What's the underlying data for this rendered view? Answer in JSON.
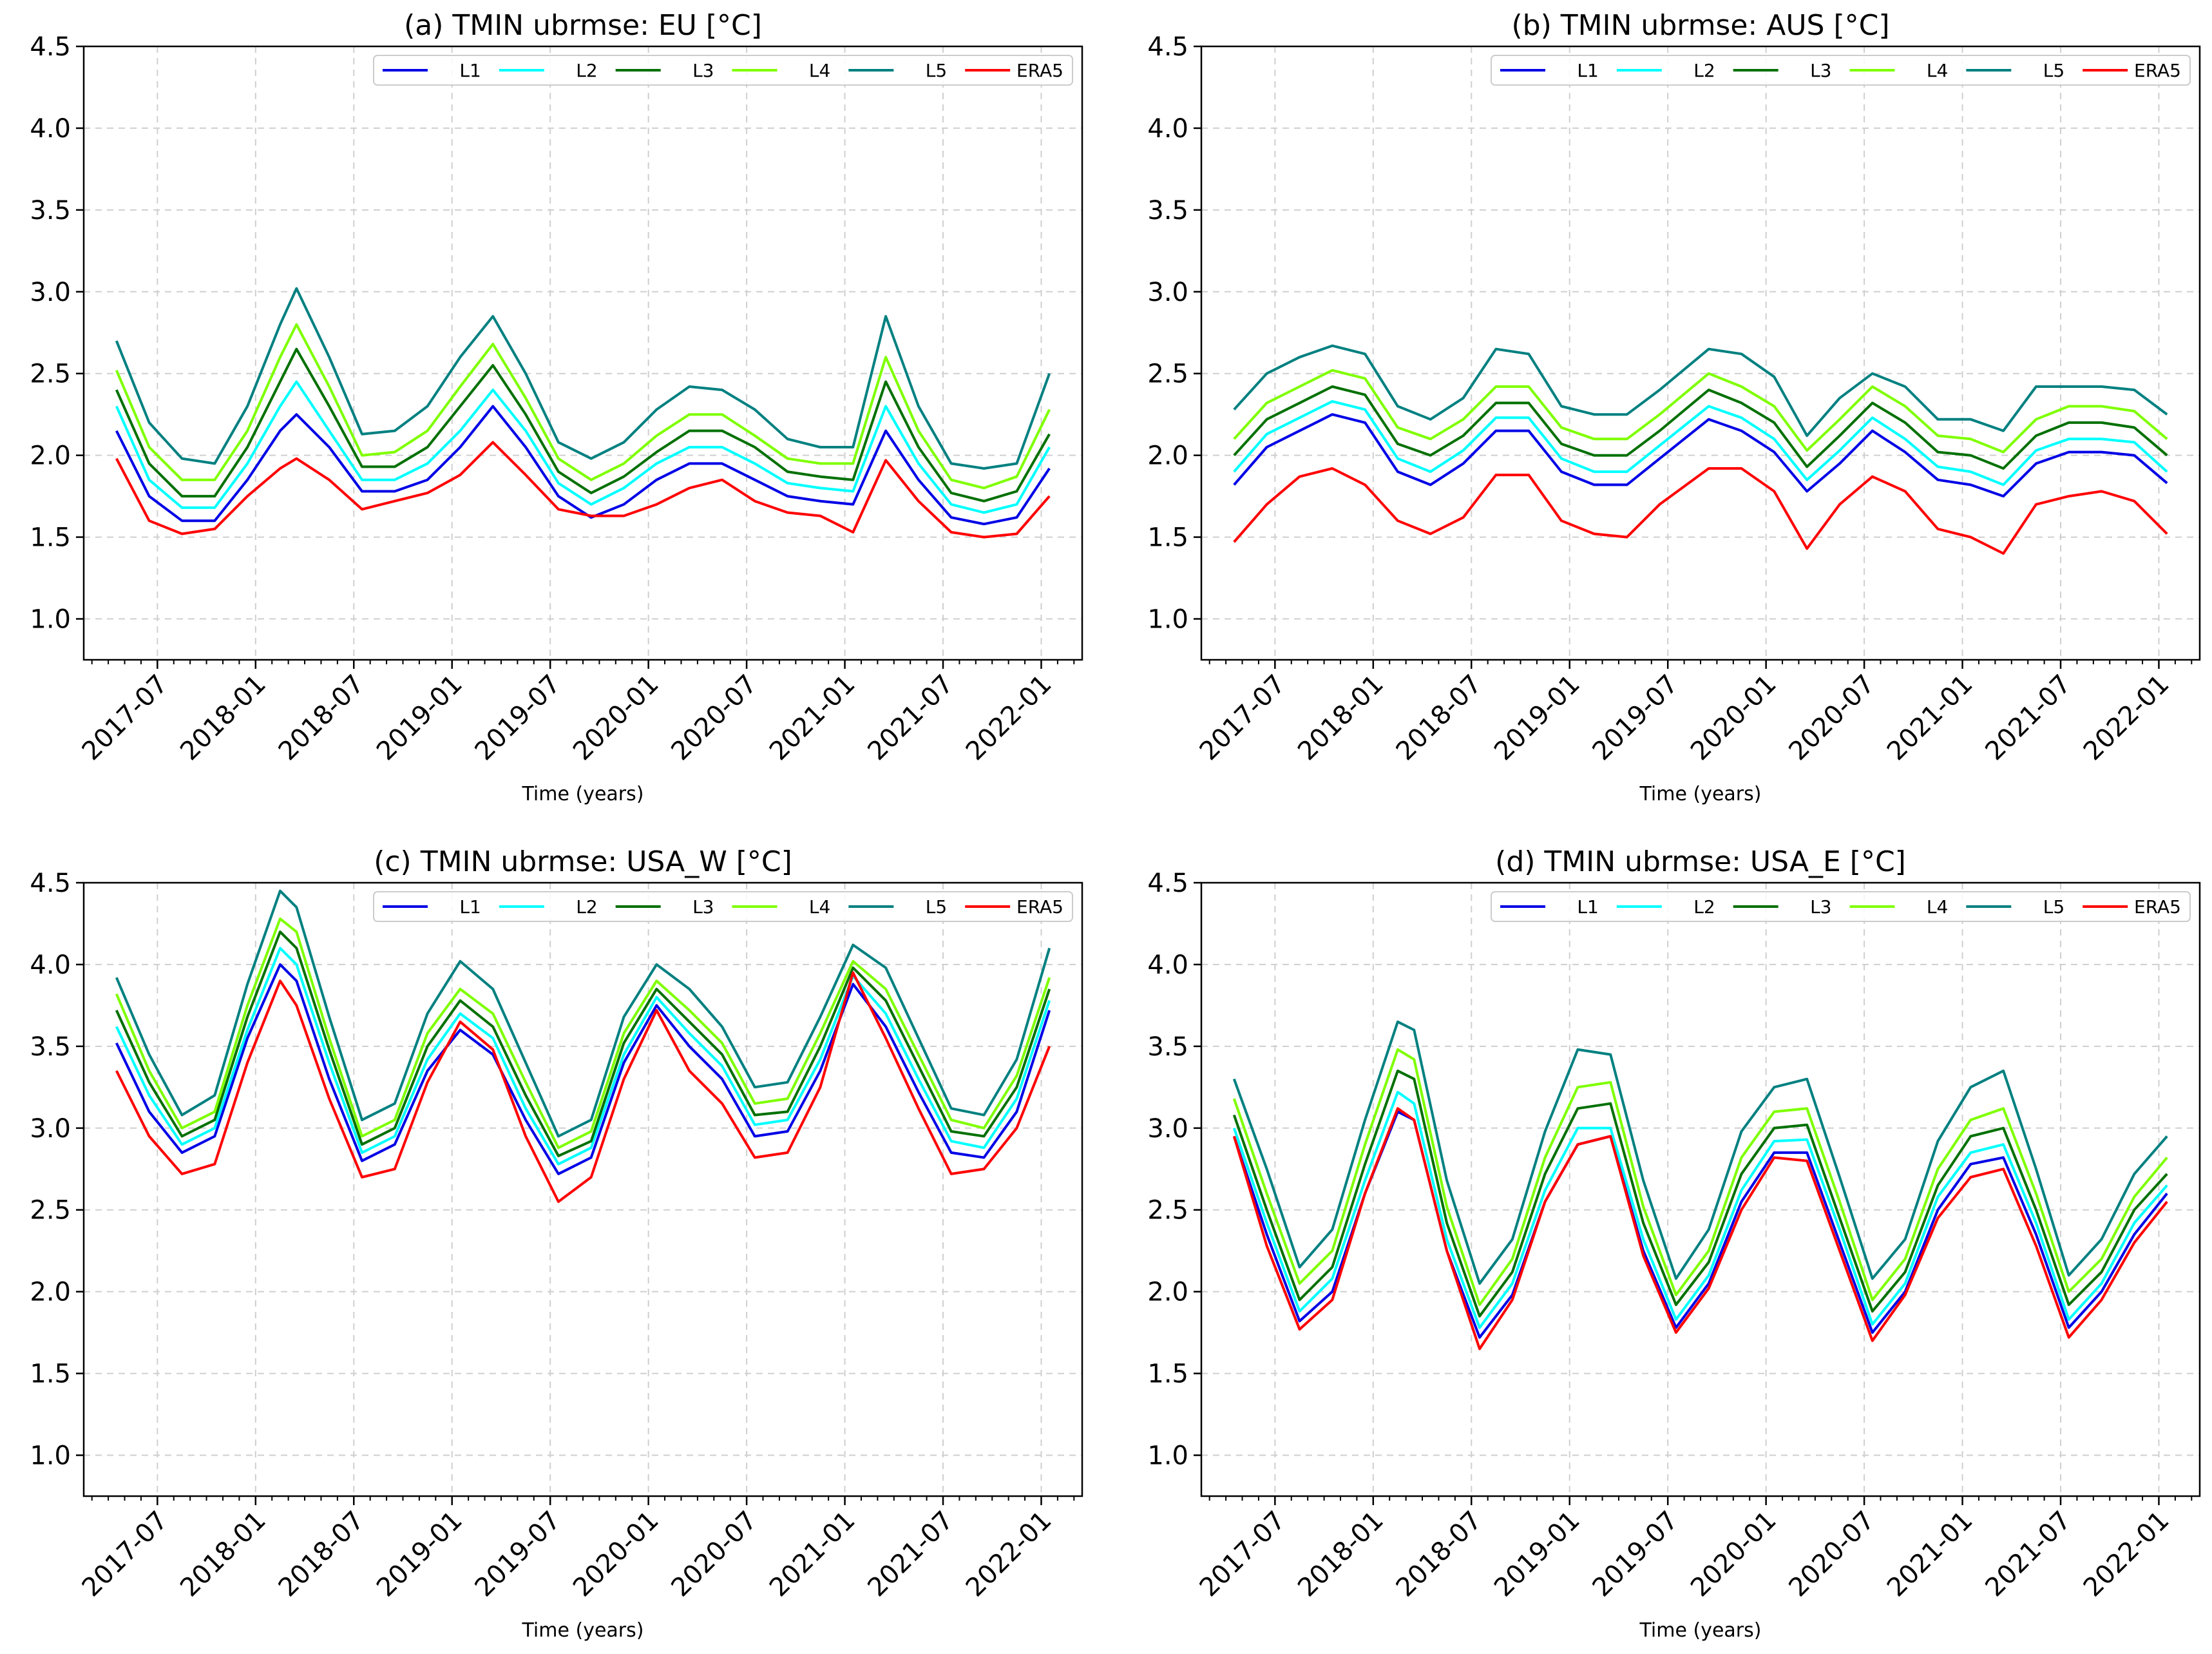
{
  "colors": {
    "L1": "#0000e6",
    "L2": "#00ffff",
    "L3": "#007000",
    "L4": "#7fff00",
    "L5": "#008080",
    "ERA5": "#ff0000"
  },
  "chart_data": [
    {
      "type": "line",
      "title": "(a) TMIN ubrmse: EU [°C]",
      "xlabel": "Time (years)",
      "ylabel": "",
      "ylim": [
        0.75,
        4.5
      ],
      "yticks": [
        "1.0",
        "1.5",
        "2.0",
        "2.5",
        "3.0",
        "3.5",
        "4.0",
        "4.5"
      ],
      "xticks": [
        "2017-07",
        "2018-01",
        "2018-07",
        "2019-01",
        "2019-07",
        "2020-01",
        "2020-07",
        "2021-01",
        "2021-07",
        "2022-01"
      ],
      "x": [
        "2017-04",
        "2017-06",
        "2017-08",
        "2017-10",
        "2017-12",
        "2018-02",
        "2018-03",
        "2018-05",
        "2018-07",
        "2018-09",
        "2018-11",
        "2019-01",
        "2019-03",
        "2019-05",
        "2019-07",
        "2019-09",
        "2019-11",
        "2020-01",
        "2020-03",
        "2020-05",
        "2020-07",
        "2020-09",
        "2020-11",
        "2021-01",
        "2021-03",
        "2021-05",
        "2021-07",
        "2021-09",
        "2021-11",
        "2022-01"
      ],
      "series": [
        {
          "name": "L1",
          "values": [
            2.15,
            1.75,
            1.6,
            1.6,
            1.85,
            2.15,
            2.25,
            2.05,
            1.78,
            1.78,
            1.85,
            2.05,
            2.3,
            2.05,
            1.75,
            1.62,
            1.7,
            1.85,
            1.95,
            1.95,
            1.85,
            1.75,
            1.72,
            1.7,
            2.15,
            1.85,
            1.62,
            1.58,
            1.62,
            1.92
          ]
        },
        {
          "name": "L2",
          "values": [
            2.3,
            1.85,
            1.68,
            1.68,
            1.95,
            2.3,
            2.45,
            2.15,
            1.85,
            1.85,
            1.95,
            2.15,
            2.4,
            2.15,
            1.83,
            1.7,
            1.8,
            1.95,
            2.05,
            2.05,
            1.95,
            1.83,
            1.8,
            1.78,
            2.3,
            1.95,
            1.7,
            1.65,
            1.7,
            2.05
          ]
        },
        {
          "name": "L3",
          "values": [
            2.4,
            1.95,
            1.75,
            1.75,
            2.05,
            2.45,
            2.65,
            2.3,
            1.93,
            1.93,
            2.05,
            2.3,
            2.55,
            2.25,
            1.9,
            1.77,
            1.87,
            2.02,
            2.15,
            2.15,
            2.05,
            1.9,
            1.87,
            1.85,
            2.45,
            2.05,
            1.77,
            1.72,
            1.78,
            2.13
          ]
        },
        {
          "name": "L4",
          "values": [
            2.52,
            2.05,
            1.85,
            1.85,
            2.15,
            2.6,
            2.8,
            2.42,
            2.0,
            2.02,
            2.15,
            2.42,
            2.68,
            2.35,
            1.98,
            1.85,
            1.95,
            2.12,
            2.25,
            2.25,
            2.12,
            1.98,
            1.95,
            1.95,
            2.6,
            2.15,
            1.85,
            1.8,
            1.87,
            2.28
          ]
        },
        {
          "name": "L5",
          "values": [
            2.7,
            2.2,
            1.98,
            1.95,
            2.3,
            2.8,
            3.02,
            2.6,
            2.13,
            2.15,
            2.3,
            2.6,
            2.85,
            2.5,
            2.08,
            1.98,
            2.08,
            2.28,
            2.42,
            2.4,
            2.28,
            2.1,
            2.05,
            2.05,
            2.85,
            2.3,
            1.95,
            1.92,
            1.95,
            2.5
          ]
        },
        {
          "name": "ERA5",
          "values": [
            1.98,
            1.6,
            1.52,
            1.55,
            1.75,
            1.92,
            1.98,
            1.85,
            1.67,
            1.72,
            1.77,
            1.88,
            2.08,
            1.88,
            1.67,
            1.63,
            1.63,
            1.7,
            1.8,
            1.85,
            1.72,
            1.65,
            1.63,
            1.53,
            1.97,
            1.72,
            1.53,
            1.5,
            1.52,
            1.75
          ]
        }
      ]
    },
    {
      "type": "line",
      "title": "(b) TMIN ubrmse: AUS [°C]",
      "xlabel": "Time (years)",
      "ylabel": "",
      "ylim": [
        0.75,
        4.5
      ],
      "yticks": [
        "1.0",
        "1.5",
        "2.0",
        "2.5",
        "3.0",
        "3.5",
        "4.0",
        "4.5"
      ],
      "xticks": [
        "2017-07",
        "2018-01",
        "2018-07",
        "2019-01",
        "2019-07",
        "2020-01",
        "2020-07",
        "2021-01",
        "2021-07",
        "2022-01"
      ],
      "x": [
        "2017-04",
        "2017-06",
        "2017-08",
        "2017-10",
        "2017-12",
        "2018-02",
        "2018-04",
        "2018-06",
        "2018-08",
        "2018-10",
        "2018-12",
        "2019-02",
        "2019-04",
        "2019-06",
        "2019-09",
        "2019-11",
        "2020-01",
        "2020-03",
        "2020-05",
        "2020-07",
        "2020-09",
        "2020-11",
        "2021-01",
        "2021-03",
        "2021-05",
        "2021-07",
        "2021-09",
        "2021-11",
        "2022-01"
      ],
      "series": [
        {
          "name": "L1",
          "values": [
            1.82,
            2.05,
            2.15,
            2.25,
            2.2,
            1.9,
            1.82,
            1.95,
            2.15,
            2.15,
            1.9,
            1.82,
            1.82,
            1.98,
            2.22,
            2.15,
            2.02,
            1.78,
            1.95,
            2.15,
            2.02,
            1.85,
            1.82,
            1.75,
            1.95,
            2.02,
            2.02,
            2.0,
            1.83
          ]
        },
        {
          "name": "L2",
          "values": [
            1.9,
            2.13,
            2.23,
            2.33,
            2.28,
            1.98,
            1.9,
            2.03,
            2.23,
            2.23,
            1.98,
            1.9,
            1.9,
            2.06,
            2.3,
            2.23,
            2.1,
            1.85,
            2.03,
            2.23,
            2.1,
            1.93,
            1.9,
            1.82,
            2.03,
            2.1,
            2.1,
            2.08,
            1.9
          ]
        },
        {
          "name": "L3",
          "values": [
            2.0,
            2.22,
            2.32,
            2.42,
            2.37,
            2.07,
            2.0,
            2.12,
            2.32,
            2.32,
            2.07,
            2.0,
            2.0,
            2.15,
            2.4,
            2.32,
            2.2,
            1.93,
            2.12,
            2.32,
            2.2,
            2.02,
            2.0,
            1.92,
            2.12,
            2.2,
            2.2,
            2.17,
            2.0
          ]
        },
        {
          "name": "L4",
          "values": [
            2.1,
            2.32,
            2.42,
            2.52,
            2.47,
            2.17,
            2.1,
            2.22,
            2.42,
            2.42,
            2.17,
            2.1,
            2.1,
            2.25,
            2.5,
            2.42,
            2.3,
            2.03,
            2.22,
            2.42,
            2.3,
            2.12,
            2.1,
            2.02,
            2.22,
            2.3,
            2.3,
            2.27,
            2.1
          ]
        },
        {
          "name": "L5",
          "values": [
            2.28,
            2.5,
            2.6,
            2.67,
            2.62,
            2.3,
            2.22,
            2.35,
            2.65,
            2.62,
            2.3,
            2.25,
            2.25,
            2.4,
            2.65,
            2.62,
            2.48,
            2.12,
            2.35,
            2.5,
            2.42,
            2.22,
            2.22,
            2.15,
            2.42,
            2.42,
            2.42,
            2.4,
            2.25
          ]
        },
        {
          "name": "ERA5",
          "values": [
            1.47,
            1.7,
            1.87,
            1.92,
            1.82,
            1.6,
            1.52,
            1.62,
            1.88,
            1.88,
            1.6,
            1.52,
            1.5,
            1.7,
            1.92,
            1.92,
            1.78,
            1.43,
            1.7,
            1.87,
            1.78,
            1.55,
            1.5,
            1.4,
            1.7,
            1.75,
            1.78,
            1.72,
            1.52
          ]
        }
      ]
    },
    {
      "type": "line",
      "title": "(c) TMIN ubrmse: USA_W [°C]",
      "xlabel": "Time (years)",
      "ylabel": "",
      "ylim": [
        0.75,
        4.5
      ],
      "yticks": [
        "1.0",
        "1.5",
        "2.0",
        "2.5",
        "3.0",
        "3.5",
        "4.0",
        "4.5"
      ],
      "xticks": [
        "2017-07",
        "2018-01",
        "2018-07",
        "2019-01",
        "2019-07",
        "2020-01",
        "2020-07",
        "2021-01",
        "2021-07",
        "2022-01"
      ],
      "x": [
        "2017-04",
        "2017-06",
        "2017-08",
        "2017-10",
        "2017-12",
        "2018-02",
        "2018-03",
        "2018-05",
        "2018-07",
        "2018-09",
        "2018-11",
        "2019-01",
        "2019-03",
        "2019-05",
        "2019-07",
        "2019-09",
        "2019-11",
        "2020-01",
        "2020-03",
        "2020-05",
        "2020-07",
        "2020-09",
        "2020-11",
        "2021-01",
        "2021-03",
        "2021-05",
        "2021-07",
        "2021-09",
        "2021-11",
        "2022-01"
      ],
      "series": [
        {
          "name": "L1",
          "values": [
            3.52,
            3.1,
            2.85,
            2.95,
            3.55,
            4.0,
            3.9,
            3.3,
            2.8,
            2.9,
            3.35,
            3.6,
            3.45,
            3.05,
            2.72,
            2.82,
            3.4,
            3.75,
            3.5,
            3.3,
            2.95,
            2.98,
            3.35,
            3.88,
            3.62,
            3.22,
            2.85,
            2.82,
            3.1,
            3.72
          ]
        },
        {
          "name": "L2",
          "values": [
            3.62,
            3.2,
            2.9,
            3.0,
            3.6,
            4.1,
            4.0,
            3.4,
            2.85,
            2.95,
            3.42,
            3.7,
            3.55,
            3.12,
            2.78,
            2.88,
            3.45,
            3.8,
            3.58,
            3.38,
            3.02,
            3.05,
            3.42,
            3.93,
            3.7,
            3.3,
            2.92,
            2.88,
            3.18,
            3.78
          ]
        },
        {
          "name": "L3",
          "values": [
            3.72,
            3.28,
            2.95,
            3.05,
            3.68,
            4.2,
            4.1,
            3.48,
            2.9,
            3.0,
            3.5,
            3.78,
            3.62,
            3.2,
            2.83,
            2.92,
            3.52,
            3.85,
            3.65,
            3.45,
            3.08,
            3.1,
            3.5,
            3.98,
            3.78,
            3.38,
            2.98,
            2.95,
            3.25,
            3.85
          ]
        },
        {
          "name": "L4",
          "values": [
            3.82,
            3.35,
            3.0,
            3.1,
            3.75,
            4.28,
            4.2,
            3.55,
            2.95,
            3.05,
            3.58,
            3.85,
            3.7,
            3.28,
            2.88,
            2.98,
            3.58,
            3.9,
            3.72,
            3.52,
            3.15,
            3.18,
            3.58,
            4.02,
            3.85,
            3.45,
            3.05,
            3.0,
            3.32,
            3.92
          ]
        },
        {
          "name": "L5",
          "values": [
            3.92,
            3.45,
            3.08,
            3.2,
            3.88,
            4.45,
            4.35,
            3.68,
            3.05,
            3.15,
            3.7,
            4.02,
            3.85,
            3.4,
            2.95,
            3.05,
            3.68,
            4.0,
            3.85,
            3.62,
            3.25,
            3.28,
            3.68,
            4.12,
            3.98,
            3.55,
            3.12,
            3.08,
            3.42,
            4.1
          ]
        },
        {
          "name": "ERA5",
          "values": [
            3.35,
            2.95,
            2.72,
            2.78,
            3.4,
            3.9,
            3.75,
            3.18,
            2.7,
            2.75,
            3.28,
            3.65,
            3.48,
            2.95,
            2.55,
            2.7,
            3.3,
            3.72,
            3.35,
            3.15,
            2.82,
            2.85,
            3.25,
            3.95,
            3.55,
            3.12,
            2.72,
            2.75,
            3.0,
            3.5
          ]
        }
      ]
    },
    {
      "type": "line",
      "title": "(d) TMIN ubrmse: USA_E [°C]",
      "xlabel": "Time (years)",
      "ylabel": "",
      "ylim": [
        0.75,
        4.5
      ],
      "yticks": [
        "1.0",
        "1.5",
        "2.0",
        "2.5",
        "3.0",
        "3.5",
        "4.0",
        "4.5"
      ],
      "xticks": [
        "2017-07",
        "2018-01",
        "2018-07",
        "2019-01",
        "2019-07",
        "2020-01",
        "2020-07",
        "2021-01",
        "2021-07",
        "2022-01"
      ],
      "x": [
        "2017-04",
        "2017-06",
        "2017-08",
        "2017-10",
        "2017-12",
        "2018-02",
        "2018-03",
        "2018-05",
        "2018-07",
        "2018-09",
        "2018-11",
        "2019-01",
        "2019-03",
        "2019-05",
        "2019-07",
        "2019-09",
        "2019-11",
        "2020-01",
        "2020-03",
        "2020-05",
        "2020-07",
        "2020-09",
        "2020-11",
        "2021-01",
        "2021-03",
        "2021-05",
        "2021-07",
        "2021-09",
        "2021-11",
        "2022-01"
      ],
      "series": [
        {
          "name": "L1",
          "values": [
            2.95,
            2.35,
            1.82,
            2.0,
            2.6,
            3.1,
            3.05,
            2.25,
            1.72,
            1.98,
            2.55,
            2.9,
            2.95,
            2.25,
            1.78,
            2.05,
            2.55,
            2.85,
            2.85,
            2.3,
            1.75,
            2.0,
            2.5,
            2.78,
            2.82,
            2.35,
            1.78,
            2.0,
            2.35,
            2.6
          ]
        },
        {
          "name": "L2",
          "values": [
            3.0,
            2.42,
            1.88,
            2.08,
            2.68,
            3.22,
            3.15,
            2.32,
            1.78,
            2.05,
            2.62,
            3.0,
            3.0,
            2.32,
            1.83,
            2.1,
            2.62,
            2.92,
            2.93,
            2.38,
            1.8,
            2.05,
            2.58,
            2.85,
            2.9,
            2.42,
            1.83,
            2.05,
            2.42,
            2.65
          ]
        },
        {
          "name": "L3",
          "values": [
            3.08,
            2.5,
            1.95,
            2.15,
            2.78,
            3.35,
            3.3,
            2.42,
            1.85,
            2.12,
            2.72,
            3.12,
            3.15,
            2.42,
            1.92,
            2.18,
            2.72,
            3.0,
            3.02,
            2.45,
            1.88,
            2.12,
            2.65,
            2.95,
            3.0,
            2.5,
            1.92,
            2.12,
            2.5,
            2.72
          ]
        },
        {
          "name": "L4",
          "values": [
            3.18,
            2.6,
            2.05,
            2.25,
            2.9,
            3.48,
            3.42,
            2.52,
            1.92,
            2.2,
            2.82,
            3.25,
            3.28,
            2.52,
            1.98,
            2.25,
            2.82,
            3.1,
            3.12,
            2.55,
            1.95,
            2.2,
            2.75,
            3.05,
            3.12,
            2.6,
            2.0,
            2.2,
            2.58,
            2.82
          ]
        },
        {
          "name": "L5",
          "values": [
            3.3,
            2.75,
            2.15,
            2.38,
            3.05,
            3.65,
            3.6,
            2.68,
            2.05,
            2.32,
            2.98,
            3.48,
            3.45,
            2.68,
            2.08,
            2.38,
            2.98,
            3.25,
            3.3,
            2.7,
            2.08,
            2.32,
            2.92,
            3.25,
            3.35,
            2.75,
            2.1,
            2.32,
            2.72,
            2.95
          ]
        },
        {
          "name": "ERA5",
          "values": [
            2.95,
            2.28,
            1.77,
            1.95,
            2.6,
            3.12,
            3.05,
            2.25,
            1.65,
            1.95,
            2.55,
            2.9,
            2.95,
            2.22,
            1.75,
            2.02,
            2.5,
            2.82,
            2.8,
            2.25,
            1.7,
            1.98,
            2.45,
            2.7,
            2.75,
            2.28,
            1.72,
            1.95,
            2.3,
            2.55
          ]
        }
      ]
    }
  ]
}
